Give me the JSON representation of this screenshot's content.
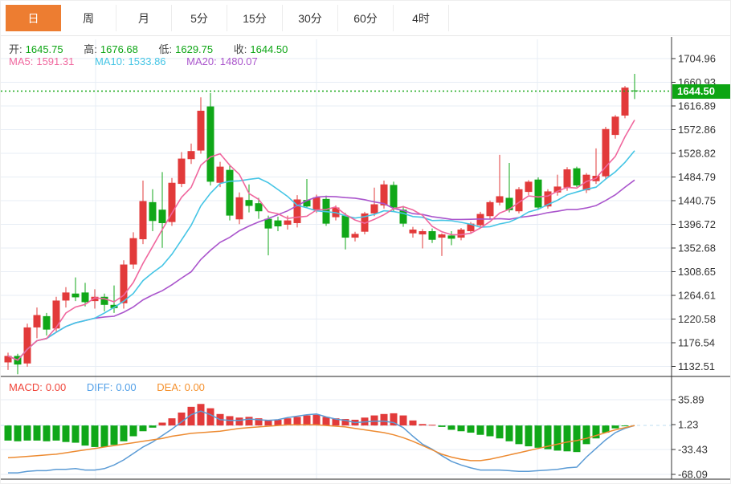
{
  "toolbar": {
    "tabs": [
      {
        "label": "日",
        "active": true
      },
      {
        "label": "周",
        "active": false
      },
      {
        "label": "月",
        "active": false
      },
      {
        "label": "5分",
        "active": false
      },
      {
        "label": "15分",
        "active": false
      },
      {
        "label": "30分",
        "active": false
      },
      {
        "label": "60分",
        "active": false
      },
      {
        "label": "4时",
        "active": false
      }
    ]
  },
  "quote": {
    "open_label": "开:",
    "open_value": "1645.75",
    "high_label": "高:",
    "high_value": "1676.68",
    "low_label": "低:",
    "low_value": "1629.75",
    "close_label": "收:",
    "close_value": "1644.50"
  },
  "ma_info": {
    "ma5_label": "MA5:",
    "ma5_value": "1591.31",
    "ma10_label": "MA10:",
    "ma10_value": "1533.86",
    "ma20_label": "MA20:",
    "ma20_value": "1480.07"
  },
  "macd_info": {
    "macd_label": "MACD:",
    "macd_value": "0.00",
    "diff_label": "DIFF:",
    "diff_value": "0.00",
    "dea_label": "DEA:",
    "dea_value": "0.00"
  },
  "price_marker": {
    "value": "1644.50",
    "price": 1644.5
  },
  "colors": {
    "accent": "#ed7d31",
    "up": "#e23a3a",
    "down": "#10a718",
    "ma5": "#f0679e",
    "ma10": "#45c5e5",
    "ma20": "#aa55cc",
    "diff_line": "#5b9bd5",
    "dea_line": "#ed8b32",
    "quote_value": "#0ca513",
    "label_text": "#444",
    "macd_label": "#f0453a",
    "diff_label": "#52a0e8",
    "dea_label": "#f5912d",
    "grid": "#e7edf5",
    "axis_line": "#333",
    "axis_text": "#333",
    "zero_line": "#bcdcf0",
    "price_line": "#17a817",
    "marker_bg": "#0da513",
    "marker_text": "#ffffff"
  },
  "chart_data": {
    "type": "candlestick",
    "title": "Daily K-line with MA5/MA10/MA20 and MACD",
    "legend_position": "top-left",
    "grid": true,
    "main": {
      "axis_ticks": [
        1704.96,
        1660.93,
        1616.89,
        1572.86,
        1528.82,
        1484.79,
        1440.75,
        1396.72,
        1352.68,
        1308.65,
        1264.61,
        1220.58,
        1176.54,
        1132.51
      ],
      "ma_periods": [
        5,
        10,
        20
      ],
      "last_price": 1644.5,
      "candles": [
        [
          1140,
          1158,
          1126,
          1152
        ],
        [
          1152,
          1156,
          1118,
          1136
        ],
        [
          1138,
          1212,
          1132,
          1205
        ],
        [
          1205,
          1242,
          1185,
          1228
        ],
        [
          1226,
          1232,
          1190,
          1201
        ],
        [
          1203,
          1262,
          1196,
          1255
        ],
        [
          1255,
          1280,
          1242,
          1270
        ],
        [
          1268,
          1298,
          1254,
          1261
        ],
        [
          1270,
          1288,
          1244,
          1252
        ],
        [
          1254,
          1276,
          1240,
          1262
        ],
        [
          1262,
          1268,
          1235,
          1247
        ],
        [
          1247,
          1283,
          1232,
          1241
        ],
        [
          1250,
          1330,
          1240,
          1322
        ],
        [
          1322,
          1382,
          1314,
          1371
        ],
        [
          1369,
          1478,
          1360,
          1440
        ],
        [
          1438,
          1462,
          1384,
          1403
        ],
        [
          1424,
          1494,
          1353,
          1399
        ],
        [
          1401,
          1483,
          1394,
          1474
        ],
        [
          1472,
          1531,
          1466,
          1519
        ],
        [
          1518,
          1547,
          1509,
          1533
        ],
        [
          1534,
          1633,
          1528,
          1608
        ],
        [
          1616,
          1641,
          1469,
          1476
        ],
        [
          1474,
          1513,
          1466,
          1504
        ],
        [
          1498,
          1506,
          1404,
          1413
        ],
        [
          1406,
          1456,
          1397,
          1447
        ],
        [
          1442,
          1471,
          1419,
          1431
        ],
        [
          1436,
          1446,
          1407,
          1421
        ],
        [
          1407,
          1413,
          1339,
          1389
        ],
        [
          1404,
          1411,
          1384,
          1393
        ],
        [
          1396,
          1413,
          1387,
          1404
        ],
        [
          1399,
          1451,
          1391,
          1443
        ],
        [
          1442,
          1481,
          1428,
          1430
        ],
        [
          1424,
          1452,
          1418,
          1447
        ],
        [
          1444,
          1450,
          1394,
          1398
        ],
        [
          1410,
          1432,
          1404,
          1428
        ],
        [
          1413,
          1418,
          1350,
          1372
        ],
        [
          1372,
          1383,
          1365,
          1379
        ],
        [
          1383,
          1420,
          1378,
          1417
        ],
        [
          1417,
          1465,
          1412,
          1434
        ],
        [
          1432,
          1478,
          1426,
          1471
        ],
        [
          1470,
          1476,
          1421,
          1428
        ],
        [
          1424,
          1431,
          1392,
          1398
        ],
        [
          1380,
          1392,
          1372,
          1387
        ],
        [
          1378,
          1388,
          1352,
          1384
        ],
        [
          1384,
          1389,
          1362,
          1368
        ],
        [
          1372,
          1380,
          1338,
          1378
        ],
        [
          1376,
          1384,
          1358,
          1370
        ],
        [
          1372,
          1390,
          1367,
          1387
        ],
        [
          1384,
          1401,
          1379,
          1398
        ],
        [
          1395,
          1420,
          1390,
          1416
        ],
        [
          1412,
          1441,
          1406,
          1438
        ],
        [
          1437,
          1526,
          1432,
          1449
        ],
        [
          1446,
          1511,
          1419,
          1423
        ],
        [
          1421,
          1466,
          1417,
          1462
        ],
        [
          1457,
          1479,
          1451,
          1476
        ],
        [
          1480,
          1484,
          1425,
          1428
        ],
        [
          1430,
          1462,
          1426,
          1458
        ],
        [
          1456,
          1489,
          1450,
          1467
        ],
        [
          1465,
          1503,
          1459,
          1499
        ],
        [
          1501,
          1504,
          1466,
          1469
        ],
        [
          1460,
          1492,
          1455,
          1489
        ],
        [
          1477,
          1538,
          1472,
          1487
        ],
        [
          1486,
          1578,
          1481,
          1574
        ],
        [
          1563,
          1600,
          1556,
          1597
        ],
        [
          1599,
          1654,
          1594,
          1651
        ],
        [
          1645.75,
          1676.68,
          1629.75,
          1644.5
        ]
      ]
    },
    "macd": {
      "axis_ticks": [
        35.89,
        1.23,
        -33.43,
        -68.09
      ],
      "hist": [
        -21,
        -22,
        -21,
        -21,
        -22,
        -21,
        -23,
        -24,
        -28,
        -30,
        -30,
        -27,
        -22,
        -15,
        -8,
        -3,
        4,
        10,
        18,
        26,
        30,
        24,
        16,
        13,
        11,
        12,
        10,
        8,
        8,
        10,
        12,
        14,
        15,
        12,
        10,
        9,
        8,
        11,
        14,
        16,
        17,
        14,
        7,
        2,
        1,
        -2,
        -6,
        -8,
        -10,
        -13,
        -15,
        -18,
        -22,
        -26,
        -29,
        -31,
        -33,
        -35,
        -36,
        -37,
        -26,
        -18,
        -10,
        -4,
        -1,
        0
      ],
      "dea": [
        -45,
        -44,
        -43,
        -42,
        -41,
        -40,
        -38,
        -36,
        -34,
        -32,
        -30,
        -28,
        -26,
        -24,
        -22,
        -20,
        -18,
        -15,
        -13,
        -11,
        -10,
        -9,
        -8,
        -6,
        -4,
        -3,
        -2,
        -1,
        0,
        1,
        1,
        1,
        1,
        0,
        -1,
        -2,
        -4,
        -6,
        -8,
        -10,
        -13,
        -17,
        -22,
        -28,
        -34,
        -40,
        -44,
        -47,
        -49,
        -49,
        -47,
        -44,
        -41,
        -38,
        -35,
        -32,
        -29,
        -26,
        -23,
        -21,
        -18,
        -14,
        -10,
        -6,
        -3,
        0
      ]
    }
  }
}
